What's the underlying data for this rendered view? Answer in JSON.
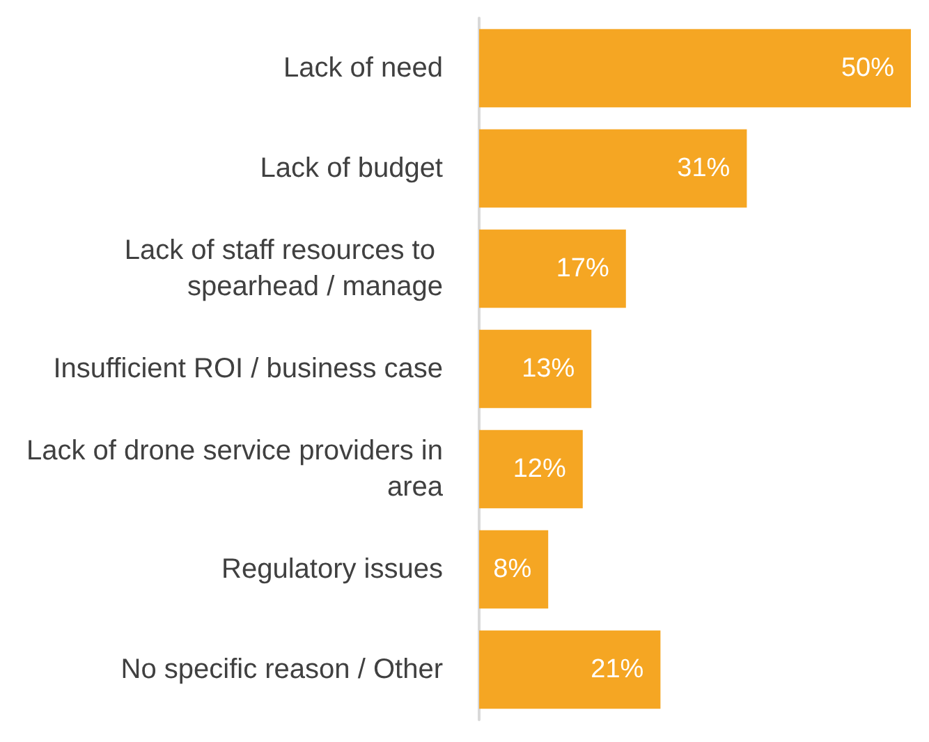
{
  "chart_data": {
    "type": "bar",
    "orientation": "horizontal",
    "categories": [
      "Lack of need",
      "Lack of budget",
      "Lack of staff resources to spearhead / manage",
      "Insufficient ROI / business case",
      "Lack of drone service providers in area",
      "Regulatory issues",
      "No specific reason / Other"
    ],
    "values": [
      50,
      31,
      17,
      13,
      12,
      8,
      21
    ],
    "value_labels": [
      "50%",
      "31%",
      "17%",
      "13%",
      "12%",
      "8%",
      "21%"
    ],
    "color": "#f5a623",
    "tick_labels": "y"
  }
}
